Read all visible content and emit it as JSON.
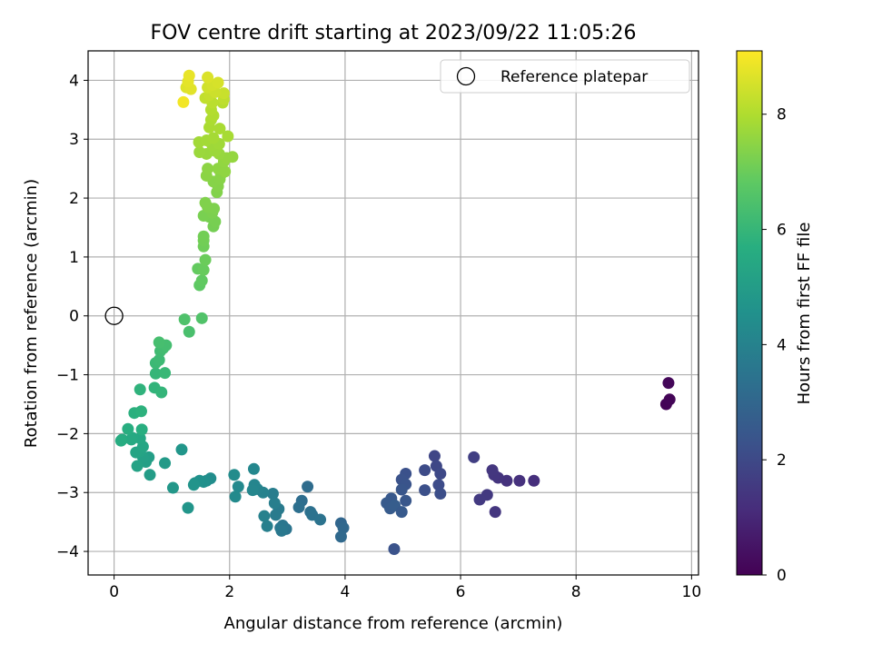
{
  "chart_data": {
    "type": "scatter",
    "title": "FOV centre drift starting at 2023/09/22 11:05:26",
    "xlabel": "Angular distance from reference (arcmin)",
    "ylabel": "Rotation from reference (arcmin)",
    "xlim": [
      -0.45,
      10.12
    ],
    "ylim": [
      -4.4,
      4.5
    ],
    "xticks": [
      0,
      2,
      4,
      6,
      8,
      10
    ],
    "yticks": [
      -4,
      -3,
      -2,
      -1,
      0,
      1,
      2,
      3,
      4
    ],
    "grid": true,
    "legend": {
      "position": "top-right",
      "entries": [
        "Reference platepar"
      ]
    },
    "reference_point": {
      "x": 0,
      "y": 0
    },
    "colorbar": {
      "label": "Hours from first FF file",
      "colormap": "viridis",
      "range": [
        0,
        9.1
      ],
      "ticks": [
        0,
        2,
        4,
        6,
        8
      ]
    },
    "series": [
      {
        "points": [
          {
            "x": 9.56,
            "y": -1.5,
            "c": 0.05
          },
          {
            "x": 9.62,
            "y": -1.42,
            "c": 0.1
          },
          {
            "x": 9.6,
            "y": -1.14,
            "c": 0.15
          },
          {
            "x": 7.27,
            "y": -2.8,
            "c": 1.2
          },
          {
            "x": 7.02,
            "y": -2.8,
            "c": 1.25
          },
          {
            "x": 6.8,
            "y": -2.8,
            "c": 1.3
          },
          {
            "x": 6.65,
            "y": -2.75,
            "c": 1.35
          },
          {
            "x": 6.58,
            "y": -2.7,
            "c": 1.4
          },
          {
            "x": 6.55,
            "y": -2.62,
            "c": 1.45
          },
          {
            "x": 6.46,
            "y": -3.04,
            "c": 1.5
          },
          {
            "x": 6.33,
            "y": -3.12,
            "c": 1.55
          },
          {
            "x": 6.6,
            "y": -3.33,
            "c": 1.4
          },
          {
            "x": 6.23,
            "y": -2.4,
            "c": 1.7
          },
          {
            "x": 5.55,
            "y": -2.38,
            "c": 1.9
          },
          {
            "x": 5.58,
            "y": -2.55,
            "c": 1.95
          },
          {
            "x": 5.65,
            "y": -2.68,
            "c": 2.0
          },
          {
            "x": 5.38,
            "y": -2.62,
            "c": 2.05
          },
          {
            "x": 5.62,
            "y": -2.87,
            "c": 2.1
          },
          {
            "x": 5.65,
            "y": -3.02,
            "c": 2.15
          },
          {
            "x": 5.38,
            "y": -2.96,
            "c": 2.2
          },
          {
            "x": 5.05,
            "y": -2.68,
            "c": 2.25
          },
          {
            "x": 4.98,
            "y": -2.78,
            "c": 2.3
          },
          {
            "x": 5.05,
            "y": -2.86,
            "c": 2.35
          },
          {
            "x": 4.98,
            "y": -2.95,
            "c": 2.4
          },
          {
            "x": 5.05,
            "y": -3.14,
            "c": 2.45
          },
          {
            "x": 4.8,
            "y": -3.1,
            "c": 2.5
          },
          {
            "x": 4.72,
            "y": -3.18,
            "c": 2.55
          },
          {
            "x": 4.78,
            "y": -3.27,
            "c": 2.6
          },
          {
            "x": 4.86,
            "y": -3.22,
            "c": 2.65
          },
          {
            "x": 4.98,
            "y": -3.33,
            "c": 2.55
          },
          {
            "x": 4.85,
            "y": -3.96,
            "c": 2.3
          },
          {
            "x": 3.93,
            "y": -3.52,
            "c": 3.0
          },
          {
            "x": 3.97,
            "y": -3.6,
            "c": 3.05
          },
          {
            "x": 3.93,
            "y": -3.75,
            "c": 3.1
          },
          {
            "x": 3.35,
            "y": -2.9,
            "c": 3.2
          },
          {
            "x": 3.25,
            "y": -3.14,
            "c": 3.25
          },
          {
            "x": 3.2,
            "y": -3.25,
            "c": 3.3
          },
          {
            "x": 3.4,
            "y": -3.33,
            "c": 3.35
          },
          {
            "x": 3.43,
            "y": -3.38,
            "c": 3.4
          },
          {
            "x": 3.57,
            "y": -3.46,
            "c": 3.45
          },
          {
            "x": 2.98,
            "y": -3.62,
            "c": 3.5
          },
          {
            "x": 2.92,
            "y": -3.56,
            "c": 3.55
          },
          {
            "x": 2.88,
            "y": -3.6,
            "c": 3.6
          },
          {
            "x": 2.9,
            "y": -3.65,
            "c": 3.65
          },
          {
            "x": 2.85,
            "y": -3.28,
            "c": 3.7
          },
          {
            "x": 2.8,
            "y": -3.38,
            "c": 3.75
          },
          {
            "x": 2.75,
            "y": -3.02,
            "c": 3.8
          },
          {
            "x": 2.78,
            "y": -3.18,
            "c": 3.85
          },
          {
            "x": 2.65,
            "y": -3.57,
            "c": 3.9
          },
          {
            "x": 2.6,
            "y": -3.4,
            "c": 3.95
          },
          {
            "x": 2.58,
            "y": -3.0,
            "c": 4.0
          },
          {
            "x": 2.48,
            "y": -2.94,
            "c": 4.05
          },
          {
            "x": 2.43,
            "y": -2.87,
            "c": 4.1
          },
          {
            "x": 2.4,
            "y": -2.96,
            "c": 4.15
          },
          {
            "x": 2.42,
            "y": -2.6,
            "c": 4.2
          },
          {
            "x": 2.15,
            "y": -2.9,
            "c": 4.25
          },
          {
            "x": 2.1,
            "y": -3.07,
            "c": 4.3
          },
          {
            "x": 2.08,
            "y": -2.7,
            "c": 4.35
          },
          {
            "x": 1.67,
            "y": -2.76,
            "c": 4.4
          },
          {
            "x": 1.6,
            "y": -2.8,
            "c": 4.45
          },
          {
            "x": 1.55,
            "y": -2.82,
            "c": 4.5
          },
          {
            "x": 1.48,
            "y": -2.8,
            "c": 4.55
          },
          {
            "x": 1.4,
            "y": -2.84,
            "c": 4.6
          },
          {
            "x": 1.38,
            "y": -2.87,
            "c": 4.65
          },
          {
            "x": 1.28,
            "y": -3.26,
            "c": 4.7
          },
          {
            "x": 1.17,
            "y": -2.27,
            "c": 4.75
          },
          {
            "x": 1.02,
            "y": -2.92,
            "c": 4.8
          },
          {
            "x": 0.88,
            "y": -2.5,
            "c": 4.9
          },
          {
            "x": 0.62,
            "y": -2.7,
            "c": 5.0
          },
          {
            "x": 0.6,
            "y": -2.4,
            "c": 5.05
          },
          {
            "x": 0.55,
            "y": -2.48,
            "c": 5.1
          },
          {
            "x": 0.5,
            "y": -2.4,
            "c": 5.15
          },
          {
            "x": 0.4,
            "y": -2.55,
            "c": 5.2
          },
          {
            "x": 0.45,
            "y": -2.3,
            "c": 5.25
          },
          {
            "x": 0.38,
            "y": -2.32,
            "c": 5.3
          },
          {
            "x": 0.5,
            "y": -2.22,
            "c": 5.35
          },
          {
            "x": 0.45,
            "y": -2.08,
            "c": 5.4
          },
          {
            "x": 0.32,
            "y": -2.07,
            "c": 5.45
          },
          {
            "x": 0.3,
            "y": -2.1,
            "c": 5.5
          },
          {
            "x": 0.14,
            "y": -2.1,
            "c": 5.55
          },
          {
            "x": 0.12,
            "y": -2.12,
            "c": 5.6
          },
          {
            "x": 0.24,
            "y": -1.92,
            "c": 5.65
          },
          {
            "x": 0.48,
            "y": -1.93,
            "c": 5.7
          },
          {
            "x": 0.35,
            "y": -1.65,
            "c": 5.75
          },
          {
            "x": 0.47,
            "y": -1.62,
            "c": 5.8
          },
          {
            "x": 0.45,
            "y": -1.25,
            "c": 5.85
          },
          {
            "x": 0.7,
            "y": -1.22,
            "c": 5.9
          },
          {
            "x": 0.82,
            "y": -1.3,
            "c": 5.95
          },
          {
            "x": 0.72,
            "y": -0.98,
            "c": 6.0
          },
          {
            "x": 0.88,
            "y": -0.97,
            "c": 6.05
          },
          {
            "x": 0.72,
            "y": -0.8,
            "c": 6.1
          },
          {
            "x": 0.78,
            "y": -0.75,
            "c": 6.15
          },
          {
            "x": 0.8,
            "y": -0.6,
            "c": 6.2
          },
          {
            "x": 0.85,
            "y": -0.55,
            "c": 6.25
          },
          {
            "x": 0.9,
            "y": -0.5,
            "c": 6.3
          },
          {
            "x": 0.78,
            "y": -0.45,
            "c": 6.35
          },
          {
            "x": 1.3,
            "y": -0.27,
            "c": 6.4
          },
          {
            "x": 1.22,
            "y": -0.06,
            "c": 6.5
          },
          {
            "x": 1.52,
            "y": -0.04,
            "c": 6.55
          },
          {
            "x": 1.48,
            "y": 0.52,
            "c": 6.8
          },
          {
            "x": 1.52,
            "y": 0.6,
            "c": 6.85
          },
          {
            "x": 1.45,
            "y": 0.8,
            "c": 6.9
          },
          {
            "x": 1.55,
            "y": 0.78,
            "c": 6.95
          },
          {
            "x": 1.58,
            "y": 0.95,
            "c": 7.0
          },
          {
            "x": 1.55,
            "y": 1.18,
            "c": 7.05
          },
          {
            "x": 1.55,
            "y": 1.28,
            "c": 7.1
          },
          {
            "x": 1.55,
            "y": 1.35,
            "c": 7.12
          },
          {
            "x": 1.72,
            "y": 1.52,
            "c": 7.15
          },
          {
            "x": 1.75,
            "y": 1.6,
            "c": 7.18
          },
          {
            "x": 1.65,
            "y": 1.68,
            "c": 7.2
          },
          {
            "x": 1.55,
            "y": 1.7,
            "c": 7.22
          },
          {
            "x": 1.7,
            "y": 1.75,
            "c": 7.25
          },
          {
            "x": 1.73,
            "y": 1.82,
            "c": 7.28
          },
          {
            "x": 1.62,
            "y": 1.85,
            "c": 7.3
          },
          {
            "x": 1.58,
            "y": 1.92,
            "c": 7.32
          },
          {
            "x": 1.78,
            "y": 2.1,
            "c": 7.35
          },
          {
            "x": 1.8,
            "y": 2.2,
            "c": 7.38
          },
          {
            "x": 1.72,
            "y": 2.28,
            "c": 7.4
          },
          {
            "x": 1.83,
            "y": 2.32,
            "c": 7.42
          },
          {
            "x": 1.85,
            "y": 2.4,
            "c": 7.45
          },
          {
            "x": 1.6,
            "y": 2.38,
            "c": 7.48
          },
          {
            "x": 1.62,
            "y": 2.5,
            "c": 7.5
          },
          {
            "x": 1.8,
            "y": 2.5,
            "c": 7.52
          },
          {
            "x": 1.92,
            "y": 2.45,
            "c": 7.55
          },
          {
            "x": 1.9,
            "y": 2.62,
            "c": 7.58
          },
          {
            "x": 2.05,
            "y": 2.7,
            "c": 7.6
          },
          {
            "x": 1.95,
            "y": 2.68,
            "c": 7.62
          },
          {
            "x": 1.82,
            "y": 2.75,
            "c": 7.65
          },
          {
            "x": 1.6,
            "y": 2.75,
            "c": 7.68
          },
          {
            "x": 1.48,
            "y": 2.78,
            "c": 7.7
          },
          {
            "x": 1.75,
            "y": 2.8,
            "c": 7.72
          },
          {
            "x": 1.7,
            "y": 2.9,
            "c": 7.75
          },
          {
            "x": 1.82,
            "y": 2.92,
            "c": 7.78
          },
          {
            "x": 1.47,
            "y": 2.95,
            "c": 7.8
          },
          {
            "x": 1.6,
            "y": 2.98,
            "c": 7.82
          },
          {
            "x": 1.72,
            "y": 3.02,
            "c": 7.85
          },
          {
            "x": 1.97,
            "y": 3.05,
            "c": 7.88
          },
          {
            "x": 1.83,
            "y": 3.18,
            "c": 7.9
          },
          {
            "x": 1.65,
            "y": 3.2,
            "c": 7.92
          },
          {
            "x": 1.68,
            "y": 3.33,
            "c": 7.95
          },
          {
            "x": 1.72,
            "y": 3.4,
            "c": 8.0
          },
          {
            "x": 1.68,
            "y": 3.5,
            "c": 8.05
          },
          {
            "x": 1.88,
            "y": 3.62,
            "c": 8.1
          },
          {
            "x": 1.7,
            "y": 3.62,
            "c": 8.15
          },
          {
            "x": 1.9,
            "y": 3.68,
            "c": 8.2
          },
          {
            "x": 1.58,
            "y": 3.7,
            "c": 8.25
          },
          {
            "x": 1.65,
            "y": 3.75,
            "c": 8.3
          },
          {
            "x": 1.9,
            "y": 3.78,
            "c": 8.35
          },
          {
            "x": 1.75,
            "y": 3.8,
            "c": 8.4
          },
          {
            "x": 1.62,
            "y": 3.88,
            "c": 8.45
          },
          {
            "x": 1.7,
            "y": 3.92,
            "c": 8.5
          },
          {
            "x": 1.8,
            "y": 3.96,
            "c": 8.55
          },
          {
            "x": 1.62,
            "y": 4.05,
            "c": 8.6
          },
          {
            "x": 1.25,
            "y": 3.88,
            "c": 8.65
          },
          {
            "x": 1.33,
            "y": 3.85,
            "c": 8.7
          },
          {
            "x": 1.28,
            "y": 3.98,
            "c": 8.75
          },
          {
            "x": 1.3,
            "y": 4.08,
            "c": 8.8
          },
          {
            "x": 1.2,
            "y": 3.63,
            "c": 8.95
          }
        ]
      }
    ]
  }
}
